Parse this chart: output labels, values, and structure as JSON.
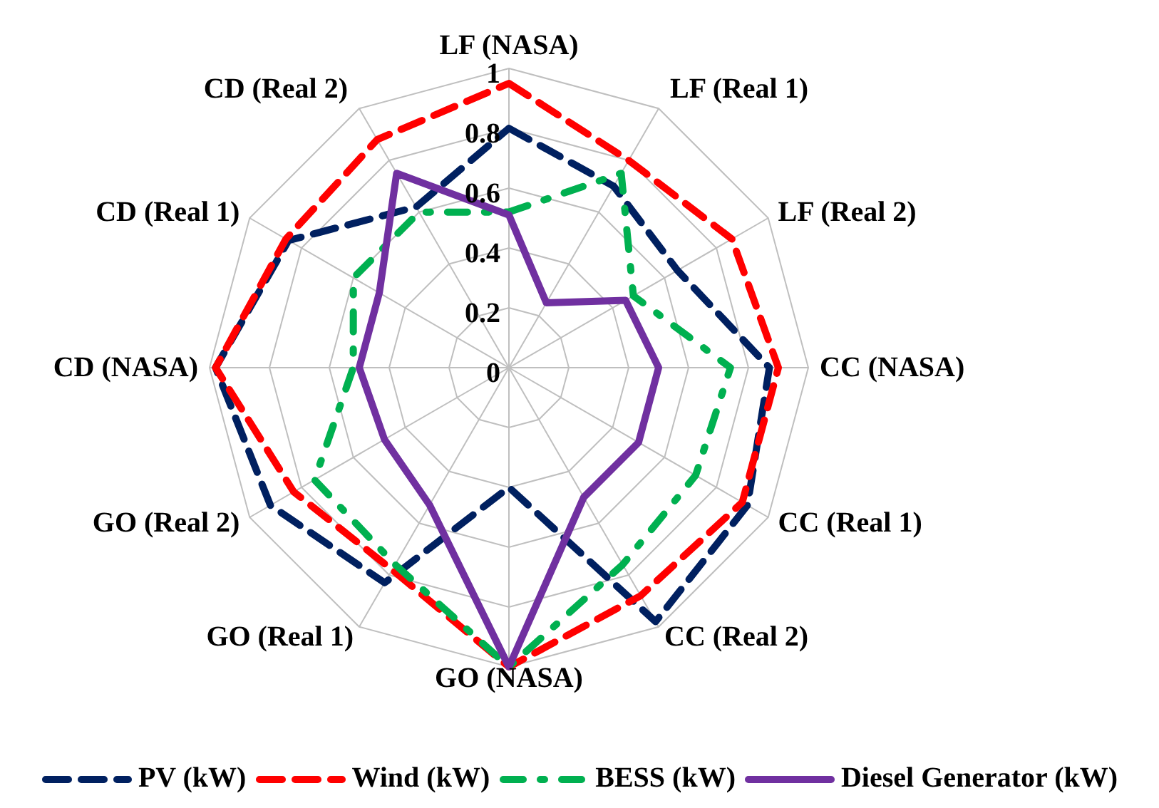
{
  "chart_data": {
    "type": "radar",
    "categories": [
      "LF (NASA)",
      "LF (Real 1)",
      "LF (Real 2)",
      "CC (NASA)",
      "CC (Real 1)",
      "CC (Real 2)",
      "GO (NASA)",
      "GO (Real 1)",
      "GO (Real 2)",
      "CD (NASA)",
      "CD (Real 1)",
      "CD (Real  2)"
    ],
    "series": [
      {
        "name": "PV (kW)",
        "color": "#002060",
        "line_style": "dashed",
        "values": [
          0.8,
          0.7,
          0.65,
          0.87,
          0.92,
          0.98,
          0.4,
          0.83,
          0.92,
          0.98,
          0.85,
          0.62
        ]
      },
      {
        "name": "Wind (kW)",
        "color": "#ff0000",
        "line_style": "dashed",
        "values": [
          0.95,
          0.8,
          0.86,
          0.9,
          0.9,
          0.88,
          1,
          0.78,
          0.83,
          0.98,
          0.86,
          0.88
        ]
      },
      {
        "name": "BESS (kW)",
        "color": "#00b050",
        "line_style": "dotted",
        "values": [
          0.52,
          0.75,
          0.48,
          0.74,
          0.72,
          0.76,
          1,
          0.76,
          0.75,
          0.52,
          0.6,
          0.6
        ]
      },
      {
        "name": "Diesel Generator (kW)",
        "color": "#7030a0",
        "line_style": "solid",
        "values": [
          0.51,
          0.25,
          0.45,
          0.5,
          0.5,
          0.5,
          1,
          0.53,
          0.48,
          0.5,
          0.5,
          0.75
        ]
      }
    ],
    "ylim": [
      0,
      1
    ],
    "yticks": [
      0,
      0.2,
      0.4,
      0.6,
      0.8,
      1
    ],
    "grid": true,
    "legend": "bottom"
  }
}
